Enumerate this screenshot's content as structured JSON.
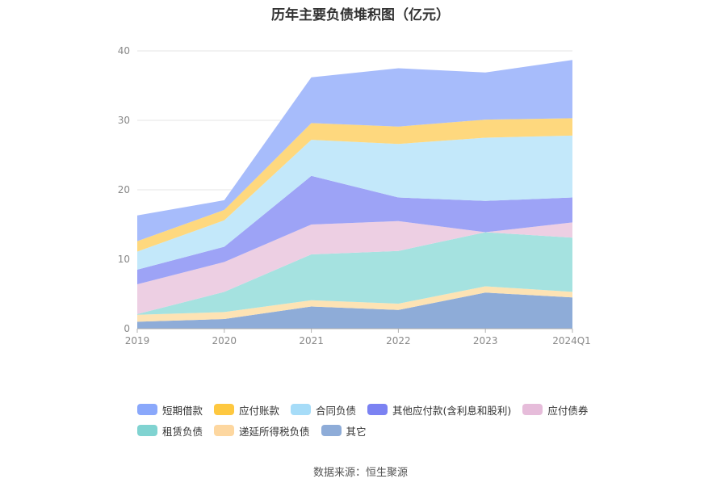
{
  "chart_data": {
    "type": "area",
    "title": "历年主要负债堆积图（亿元）",
    "categories": [
      "2019",
      "2020",
      "2021",
      "2022",
      "2023",
      "2024Q1"
    ],
    "ylim": [
      0,
      40
    ],
    "yticks": [
      "0",
      "10",
      "20",
      "30",
      "40"
    ],
    "grid": true,
    "legend_position": "bottom",
    "series": [
      {
        "name": "其它",
        "color": "#8eacd8",
        "values": [
          1.0,
          1.4,
          3.2,
          2.7,
          5.2,
          4.5
        ]
      },
      {
        "name": "递延所得税负债",
        "color": "#fde3b4",
        "values": [
          1.0,
          1.0,
          0.9,
          0.9,
          0.9,
          0.8
        ]
      },
      {
        "name": "租赁负债",
        "color": "#a5e2e0",
        "values": [
          0.1,
          2.9,
          6.6,
          7.6,
          7.8,
          7.8
        ]
      },
      {
        "name": "应付债券",
        "color": "#edcfe3",
        "values": [
          4.3,
          4.3,
          4.3,
          4.3,
          0.0,
          2.2
        ]
      },
      {
        "name": "其他应付款(含利息和股利)",
        "color": "#9da3f6",
        "values": [
          2.1,
          2.2,
          7.0,
          3.4,
          4.5,
          3.6
        ]
      },
      {
        "name": "合同负债",
        "color": "#c3e8fa",
        "values": [
          2.6,
          3.8,
          5.2,
          7.7,
          9.1,
          8.9
        ]
      },
      {
        "name": "应付账款",
        "color": "#fed87e",
        "values": [
          1.5,
          1.5,
          2.4,
          2.5,
          2.6,
          2.5
        ]
      },
      {
        "name": "短期借款",
        "color": "#a7bcfb",
        "values": [
          3.7,
          1.4,
          6.6,
          8.4,
          6.8,
          8.4
        ]
      }
    ],
    "legend": [
      {
        "name": "短期借款",
        "color": "#8aa8fb"
      },
      {
        "name": "应付账款",
        "color": "#fec840"
      },
      {
        "name": "合同负债",
        "color": "#a6dcf8"
      },
      {
        "name": "其他应付款(含利息和股利)",
        "color": "#7b82f2"
      },
      {
        "name": "应付债券",
        "color": "#e6bcda"
      },
      {
        "name": "租赁负债",
        "color": "#80d3d1"
      },
      {
        "name": "递延所得税负债",
        "color": "#fdd7a0"
      },
      {
        "name": "其它",
        "color": "#8eacd8"
      }
    ]
  },
  "footer": {
    "source": "数据来源：恒生聚源"
  }
}
